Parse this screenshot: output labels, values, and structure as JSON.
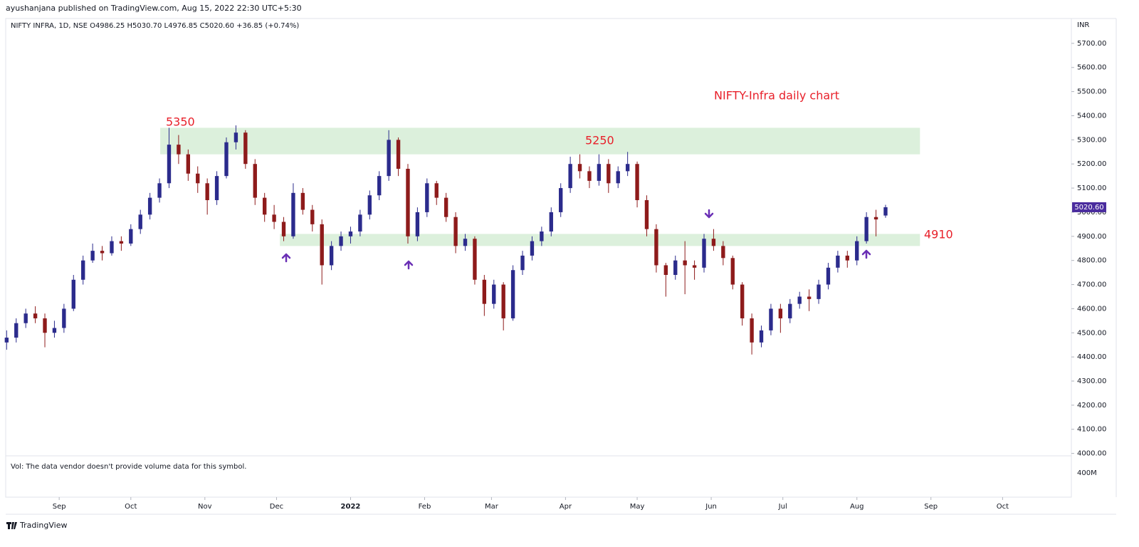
{
  "header": {
    "publisher": "ayushanjana published on TradingView.com, Aug 15, 2022 22:30 UTC+5:30",
    "footer": "TradingView"
  },
  "chart_data": {
    "type": "candlestick",
    "legend": "NIFTY INFRA, 1D, NSE  O4986.25 H5030.70 L4976.85 C5020.60 +36.85 (+0.74%)",
    "currency": "INR",
    "title": "NIFTY-Infra daily chart",
    "annotations": [
      "5350",
      "5250",
      "4910"
    ],
    "volume_note": "Vol: The data vendor doesn't provide volume data for this symbol.",
    "volume_axis_label": "400M",
    "up_color": "#2b2b8c",
    "down_color": "#8e1b1b",
    "zone_color": "#dcf0dc",
    "grid": false,
    "xlim": [
      -22.4,
      423.8
    ],
    "xticks": [
      {
        "value": 0,
        "label": "Sep"
      },
      {
        "value": 30,
        "label": "Oct"
      },
      {
        "value": 61,
        "label": "Nov"
      },
      {
        "value": 91,
        "label": "Dec"
      },
      {
        "value": 122,
        "label": "2022"
      },
      {
        "value": 153,
        "label": "Feb"
      },
      {
        "value": 181,
        "label": "Mar"
      },
      {
        "value": 212,
        "label": "Apr"
      },
      {
        "value": 242,
        "label": "May"
      },
      {
        "value": 273,
        "label": "Jun"
      },
      {
        "value": 303,
        "label": "Jul"
      },
      {
        "value": 334,
        "label": "Aug"
      },
      {
        "value": 365,
        "label": "Sep"
      },
      {
        "value": 395,
        "label": "Oct"
      }
    ],
    "ylim": [
      3990,
      5800
    ],
    "yticks": [
      {
        "value": 4000,
        "label": "4000.00"
      },
      {
        "value": 4100,
        "label": "4100.00"
      },
      {
        "value": 4200,
        "label": "4200.00"
      },
      {
        "value": 4300,
        "label": "4300.00"
      },
      {
        "value": 4400,
        "label": "4400.00"
      },
      {
        "value": 4500,
        "label": "4500.00"
      },
      {
        "value": 4600,
        "label": "4600.00"
      },
      {
        "value": 4700,
        "label": "4700.00"
      },
      {
        "value": 4800,
        "label": "4800.00"
      },
      {
        "value": 4900,
        "label": "4900.00"
      },
      {
        "value": 5000,
        "label": "5000.00"
      },
      {
        "value": 5100,
        "label": "5100.00"
      },
      {
        "value": 5200,
        "label": "5200.00"
      },
      {
        "value": 5300,
        "label": "5300.00"
      },
      {
        "value": 5400,
        "label": "5400.00"
      },
      {
        "value": 5500,
        "label": "5500.00"
      },
      {
        "value": 5600,
        "label": "5600.00"
      },
      {
        "value": 5700,
        "label": "5700.00"
      }
    ],
    "last_price": {
      "value": 5020.6,
      "label": "5020.60"
    },
    "zones": [
      {
        "xlim": [
          42.3,
          360.4
        ],
        "ylim": [
          5240,
          5350
        ]
      },
      {
        "xlim": [
          92.4,
          360.4
        ],
        "ylim": [
          4860,
          4910
        ]
      }
    ],
    "x": [
      -22,
      -18,
      -14,
      -10,
      -6,
      -2,
      2,
      6,
      10,
      14,
      18,
      22,
      26,
      30,
      34,
      38,
      42,
      46,
      50,
      54,
      58,
      62,
      66,
      70,
      74,
      78,
      82,
      86,
      90,
      94,
      98,
      102,
      106,
      110,
      114,
      118,
      122,
      126,
      130,
      134,
      138,
      142,
      146,
      150,
      154,
      158,
      162,
      166,
      170,
      174,
      178,
      182,
      186,
      190,
      194,
      198,
      202,
      206,
      210,
      214,
      218,
      222,
      226,
      230,
      234,
      238,
      242,
      246,
      250,
      254,
      258,
      262,
      266,
      270,
      274,
      278,
      282,
      286,
      290,
      294,
      298,
      302,
      306,
      310,
      314,
      318,
      322,
      326,
      330,
      334,
      338,
      342,
      346
    ],
    "candles": [
      [
        4460,
        4510,
        4430,
        4480
      ],
      [
        4480,
        4560,
        4460,
        4540
      ],
      [
        4540,
        4600,
        4520,
        4580
      ],
      [
        4580,
        4610,
        4540,
        4560
      ],
      [
        4560,
        4580,
        4440,
        4500
      ],
      [
        4500,
        4550,
        4480,
        4520
      ],
      [
        4520,
        4620,
        4500,
        4600
      ],
      [
        4600,
        4740,
        4590,
        4720
      ],
      [
        4720,
        4820,
        4700,
        4800
      ],
      [
        4800,
        4870,
        4790,
        4840
      ],
      [
        4840,
        4860,
        4800,
        4830
      ],
      [
        4830,
        4900,
        4820,
        4880
      ],
      [
        4880,
        4900,
        4840,
        4870
      ],
      [
        4870,
        4950,
        4860,
        4930
      ],
      [
        4930,
        5010,
        4910,
        4990
      ],
      [
        4990,
        5080,
        4970,
        5060
      ],
      [
        5060,
        5140,
        5040,
        5120
      ],
      [
        5120,
        5350,
        5100,
        5280
      ],
      [
        5280,
        5320,
        5200,
        5240
      ],
      [
        5240,
        5260,
        5130,
        5160
      ],
      [
        5160,
        5190,
        5080,
        5120
      ],
      [
        5120,
        5140,
        4990,
        5050
      ],
      [
        5050,
        5170,
        5030,
        5150
      ],
      [
        5150,
        5310,
        5140,
        5290
      ],
      [
        5290,
        5360,
        5260,
        5330
      ],
      [
        5330,
        5340,
        5180,
        5200
      ],
      [
        5200,
        5220,
        5030,
        5060
      ],
      [
        5060,
        5080,
        4960,
        4990
      ],
      [
        4990,
        5030,
        4930,
        4960
      ],
      [
        4960,
        4980,
        4880,
        4900
      ],
      [
        4900,
        5120,
        4890,
        5080
      ],
      [
        5080,
        5100,
        4990,
        5010
      ],
      [
        5010,
        5030,
        4920,
        4950
      ],
      [
        4950,
        4970,
        4700,
        4780
      ],
      [
        4780,
        4880,
        4760,
        4860
      ],
      [
        4860,
        4920,
        4840,
        4900
      ],
      [
        4900,
        4940,
        4870,
        4920
      ],
      [
        4920,
        5010,
        4900,
        4990
      ],
      [
        4990,
        5090,
        4970,
        5070
      ],
      [
        5070,
        5170,
        5050,
        5150
      ],
      [
        5150,
        5340,
        5130,
        5300
      ],
      [
        5300,
        5310,
        5150,
        5180
      ],
      [
        5180,
        5200,
        4870,
        4900
      ],
      [
        4900,
        5020,
        4880,
        5000
      ],
      [
        5000,
        5140,
        4980,
        5120
      ],
      [
        5120,
        5130,
        5030,
        5060
      ],
      [
        5060,
        5080,
        4960,
        4980
      ],
      [
        4980,
        5000,
        4830,
        4860
      ],
      [
        4860,
        4910,
        4840,
        4890
      ],
      [
        4890,
        4900,
        4700,
        4720
      ],
      [
        4720,
        4740,
        4570,
        4620
      ],
      [
        4620,
        4720,
        4600,
        4700
      ],
      [
        4700,
        4710,
        4510,
        4560
      ],
      [
        4560,
        4780,
        4550,
        4760
      ],
      [
        4760,
        4840,
        4740,
        4820
      ],
      [
        4820,
        4900,
        4800,
        4880
      ],
      [
        4880,
        4940,
        4860,
        4920
      ],
      [
        4920,
        5020,
        4900,
        5000
      ],
      [
        5000,
        5120,
        4980,
        5100
      ],
      [
        5100,
        5230,
        5080,
        5200
      ],
      [
        5200,
        5240,
        5140,
        5170
      ],
      [
        5170,
        5190,
        5100,
        5130
      ],
      [
        5130,
        5240,
        5110,
        5200
      ],
      [
        5200,
        5220,
        5080,
        5120
      ],
      [
        5120,
        5190,
        5100,
        5170
      ],
      [
        5170,
        5250,
        5150,
        5200
      ],
      [
        5200,
        5210,
        5020,
        5050
      ],
      [
        5050,
        5070,
        4900,
        4930
      ],
      [
        4930,
        4950,
        4750,
        4780
      ],
      [
        4780,
        4790,
        4650,
        4740
      ],
      [
        4740,
        4820,
        4720,
        4800
      ],
      [
        4800,
        4880,
        4660,
        4780
      ],
      [
        4780,
        4800,
        4720,
        4770
      ],
      [
        4770,
        4910,
        4750,
        4890
      ],
      [
        4890,
        4930,
        4840,
        4860
      ],
      [
        4860,
        4880,
        4780,
        4810
      ],
      [
        4810,
        4820,
        4680,
        4700
      ],
      [
        4700,
        4710,
        4530,
        4560
      ],
      [
        4560,
        4580,
        4410,
        4460
      ],
      [
        4460,
        4530,
        4440,
        4510
      ],
      [
        4510,
        4620,
        4490,
        4600
      ],
      [
        4600,
        4620,
        4500,
        4560
      ],
      [
        4560,
        4640,
        4540,
        4620
      ],
      [
        4620,
        4670,
        4600,
        4650
      ],
      [
        4650,
        4680,
        4590,
        4640
      ],
      [
        4640,
        4720,
        4620,
        4700
      ],
      [
        4700,
        4790,
        4680,
        4770
      ],
      [
        4770,
        4840,
        4750,
        4820
      ],
      [
        4820,
        4840,
        4770,
        4800
      ],
      [
        4800,
        4900,
        4780,
        4880
      ],
      [
        4880,
        5000,
        4870,
        4980
      ],
      [
        4980,
        5010,
        4900,
        4970
      ],
      [
        4986.25,
        5030.7,
        4976.85,
        5020.6
      ]
    ]
  }
}
